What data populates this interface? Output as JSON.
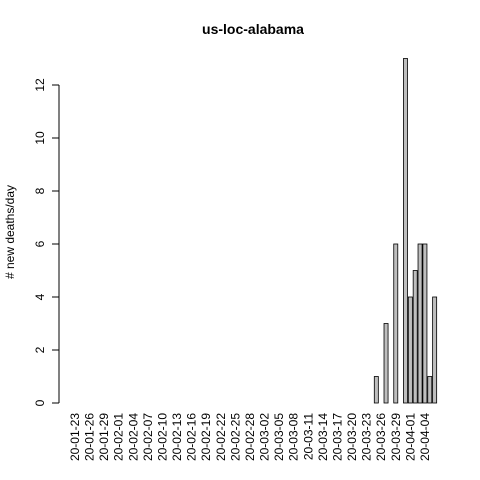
{
  "chart_data": {
    "type": "bar",
    "title": "us-loc-alabama",
    "y_label": "# new deaths/day",
    "categories": [
      "20-01-23",
      null,
      null,
      "20-01-26",
      null,
      null,
      "20-01-29",
      null,
      null,
      "20-02-01",
      null,
      null,
      "20-02-04",
      null,
      null,
      "20-02-07",
      null,
      null,
      "20-02-10",
      null,
      null,
      "20-02-13",
      null,
      null,
      "20-02-16",
      null,
      null,
      "20-02-19",
      null,
      null,
      "20-02-22",
      null,
      null,
      "20-02-25",
      null,
      null,
      "20-02-28",
      null,
      null,
      "20-03-02",
      null,
      null,
      "20-03-05",
      null,
      null,
      "20-03-08",
      null,
      null,
      "20-03-11",
      null,
      null,
      "20-03-14",
      null,
      null,
      "20-03-17",
      null,
      null,
      "20-03-20",
      null,
      null,
      "20-03-23",
      null,
      null,
      "20-03-26",
      null,
      null,
      "20-03-29",
      null,
      null,
      "20-04-01",
      null,
      null,
      "20-04-04",
      null,
      null
    ],
    "values": [
      0,
      0,
      0,
      0,
      0,
      0,
      0,
      0,
      0,
      0,
      0,
      0,
      0,
      0,
      0,
      0,
      0,
      0,
      0,
      0,
      0,
      0,
      0,
      0,
      0,
      0,
      0,
      0,
      0,
      0,
      0,
      0,
      0,
      0,
      0,
      0,
      0,
      0,
      0,
      0,
      0,
      0,
      0,
      0,
      0,
      0,
      0,
      0,
      0,
      0,
      0,
      0,
      0,
      0,
      0,
      0,
      0,
      0,
      0,
      0,
      0,
      0,
      1,
      0,
      3,
      0,
      6,
      0,
      13,
      4,
      5,
      6,
      6,
      1,
      4
    ],
    "color": "#bebebe",
    "ylim": [
      0,
      13
    ],
    "yticks": [
      0,
      2,
      4,
      6,
      8,
      10,
      12
    ]
  }
}
